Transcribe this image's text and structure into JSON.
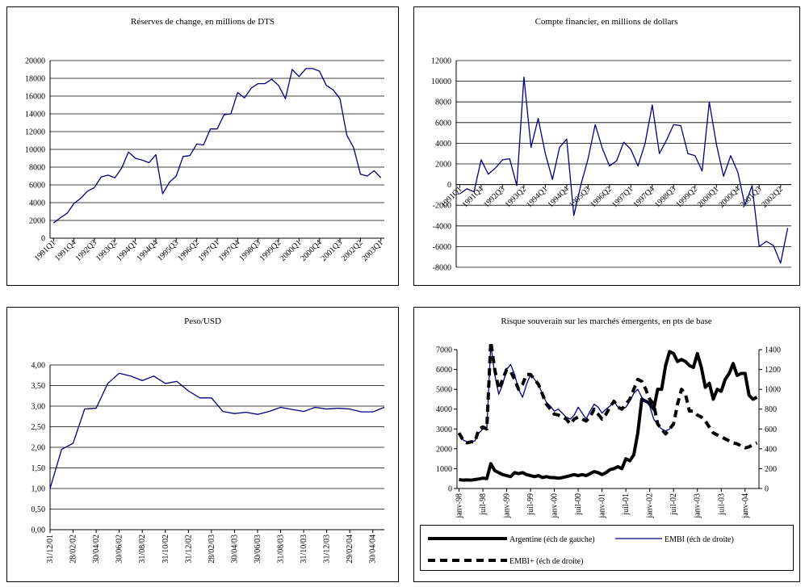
{
  "chart_data": [
    {
      "type": "line",
      "title": "Réserves de change, en millions de DTS",
      "categories": [
        "1991Q1",
        null,
        null,
        "1991Q4",
        null,
        null,
        "1992Q3",
        null,
        null,
        "1993Q2",
        null,
        null,
        "1994Q1",
        null,
        null,
        "1994Q4",
        null,
        null,
        "1995Q3",
        null,
        null,
        "1996Q2",
        null,
        null,
        "1997Q1",
        null,
        null,
        "1997Q4",
        null,
        null,
        "1998Q3",
        null,
        null,
        "1999Q2",
        null,
        null,
        "2000Q1",
        null,
        null,
        "2000Q4",
        null,
        null,
        "2001Q3",
        null,
        null,
        "2002Q2",
        null,
        null,
        "2003Q1"
      ],
      "values": [
        1700,
        2300,
        2800,
        3900,
        4500,
        5300,
        5700,
        6900,
        7100,
        6800,
        7900,
        9700,
        9000,
        8800,
        8500,
        9400,
        5000,
        6300,
        7000,
        9200,
        9300,
        10600,
        10500,
        12300,
        12300,
        13900,
        14000,
        16400,
        15800,
        16900,
        17400,
        17400,
        17900,
        17200,
        15700,
        19000,
        18200,
        19100,
        19100,
        18800,
        17200,
        16700,
        15700,
        11600,
        10200,
        7200,
        7000,
        7600,
        6800
      ],
      "color": "#000080",
      "ylim": [
        0,
        20000
      ],
      "yticks": [
        0,
        2000,
        4000,
        6000,
        8000,
        10000,
        12000,
        14000,
        16000,
        18000,
        20000
      ],
      "grid": true
    },
    {
      "type": "line",
      "title": "Compte financier, en millions de dollars",
      "categories": [
        "1991Q1",
        null,
        null,
        "1991Q4",
        null,
        null,
        "1992Q3",
        null,
        null,
        "1993Q2",
        null,
        null,
        "1994Q1",
        null,
        null,
        "1994Q4",
        null,
        null,
        "1995Q3",
        null,
        null,
        "1996Q2",
        null,
        null,
        "1997Q1",
        null,
        null,
        "1997Q4",
        null,
        null,
        "1998Q3",
        null,
        null,
        "1999Q2",
        null,
        null,
        "2000Q1",
        null,
        null,
        "2000Q4",
        null,
        null,
        "2001Q3",
        null,
        null,
        "2002Q2",
        null
      ],
      "values": [
        -900,
        -400,
        -700,
        2400,
        1000,
        1600,
        2400,
        2500,
        -100,
        10400,
        3600,
        6400,
        3000,
        500,
        3600,
        4400,
        -3000,
        0,
        2500,
        5800,
        3500,
        1800,
        2300,
        4100,
        3400,
        1800,
        4000,
        7700,
        3000,
        4300,
        5800,
        5700,
        3000,
        2800,
        1300,
        8000,
        3900,
        800,
        2800,
        1200,
        -2000,
        -100,
        -6000,
        -5500,
        -5900,
        -7600,
        -4200
      ],
      "color": "#000080",
      "ylim": [
        -8000,
        12000
      ],
      "yticks": [
        -8000,
        -6000,
        -4000,
        -2000,
        0,
        2000,
        4000,
        6000,
        8000,
        10000,
        12000
      ],
      "grid": true
    },
    {
      "type": "line",
      "title": "Peso/USD",
      "categories": [
        "31/12/01",
        null,
        "28/02/02",
        null,
        "30/04/02",
        null,
        "30/06/02",
        null,
        "31/08/02",
        null,
        "31/10/02",
        null,
        "31/12/02",
        null,
        "28/02/03",
        null,
        "30/04/03",
        null,
        "30/06/03",
        null,
        "31/08/03",
        null,
        "31/10/03",
        null,
        "31/12/03",
        null,
        "29/02/04",
        null,
        "30/04/04",
        null
      ],
      "values": [
        1.0,
        1.95,
        2.1,
        2.93,
        2.95,
        3.55,
        3.8,
        3.73,
        3.62,
        3.73,
        3.55,
        3.6,
        3.37,
        3.2,
        3.2,
        2.87,
        2.82,
        2.85,
        2.8,
        2.87,
        2.97,
        2.92,
        2.87,
        2.97,
        2.93,
        2.95,
        2.93,
        2.86,
        2.86,
        2.97
      ],
      "color": "#000080",
      "ylim": [
        0,
        4
      ],
      "yticks": [
        {
          "value": 0,
          "label": "0,00"
        },
        {
          "value": 0.5,
          "label": "0,50"
        },
        {
          "value": 1,
          "label": "1,00"
        },
        {
          "value": 1.5,
          "label": "1,50"
        },
        {
          "value": 2,
          "label": "2,00"
        },
        {
          "value": 2.5,
          "label": "2,50"
        },
        {
          "value": 3,
          "label": "3,00"
        },
        {
          "value": 3.5,
          "label": "3,50"
        },
        {
          "value": 4,
          "label": "4,00"
        }
      ],
      "grid": true
    },
    {
      "type": "line",
      "title": "Risque souverain sur les marchés émergents, en pts de base",
      "categories": [
        "janv-98",
        null,
        null,
        null,
        null,
        null,
        "juil-98",
        null,
        null,
        null,
        null,
        null,
        "janv-99",
        null,
        null,
        null,
        null,
        null,
        "juil-99",
        null,
        null,
        null,
        null,
        null,
        "janv-00",
        null,
        null,
        null,
        null,
        null,
        "juil-00",
        null,
        null,
        null,
        null,
        null,
        "janv-01",
        null,
        null,
        null,
        null,
        null,
        "juil-01",
        null,
        null,
        null,
        null,
        null,
        "janv-02",
        null,
        null,
        null,
        null,
        null,
        "juil-02",
        null,
        null,
        null,
        null,
        null,
        "janv-03",
        null,
        null,
        null,
        null,
        null,
        "juil-03",
        null,
        null,
        null,
        null,
        null,
        "janv-04",
        null,
        null,
        null
      ],
      "series": [
        {
          "name": "Argentine (éch de gauche)",
          "color": "#000000",
          "bold": true,
          "values": [
            450,
            420,
            430,
            420,
            450,
            480,
            520,
            500,
            1250,
            900,
            800,
            700,
            650,
            600,
            800,
            750,
            800,
            700,
            650,
            600,
            650,
            550,
            600,
            550,
            550,
            520,
            550,
            600,
            650,
            700,
            650,
            700,
            650,
            750,
            850,
            800,
            700,
            800,
            950,
            1000,
            1100,
            1000,
            1500,
            1400,
            1700,
            2800,
            4500,
            4400,
            4300,
            4000,
            5000,
            5000,
            6200,
            6900,
            6800,
            6400,
            6500,
            6400,
            6200,
            6100,
            6800,
            6100,
            5100,
            5300,
            4500,
            5000,
            4900,
            5500,
            5800,
            6300,
            5700,
            5800,
            5800,
            4700,
            4500,
            4600
          ]
        },
        {
          "name": "EMBI (éch de droite)",
          "color": "#000080",
          "axis": "y2",
          "values": [
            560,
            490,
            470,
            470,
            480,
            560,
            600,
            600,
            1450,
            1150,
            950,
            1050,
            1200,
            1250,
            1150,
            1000,
            920,
            1050,
            1150,
            1100,
            1050,
            950,
            870,
            830,
            780,
            800,
            760,
            720,
            700,
            740,
            820,
            760,
            700,
            780,
            850,
            820,
            760,
            800,
            830,
            880,
            820,
            800,
            820,
            880,
            960,
            1000,
            920,
            880,
            830,
            700,
            640,
            600,
            580,
            600,
            640,
            null,
            null,
            null,
            null,
            null,
            null,
            null,
            null,
            null,
            null,
            null,
            null,
            null,
            null,
            null,
            null,
            null,
            null,
            null,
            null,
            null
          ]
        },
        {
          "name": "EMBI+ (éch de droite)",
          "color": "#000000",
          "axis": "y2",
          "dashed": true,
          "bold": true,
          "values": [
            560,
            490,
            460,
            470,
            470,
            600,
            620,
            600,
            1480,
            1200,
            1000,
            1100,
            1200,
            1180,
            1100,
            1000,
            1050,
            1150,
            1150,
            1100,
            1050,
            950,
            850,
            800,
            750,
            740,
            720,
            700,
            650,
            700,
            720,
            700,
            680,
            720,
            800,
            750,
            700,
            750,
            820,
            880,
            820,
            800,
            850,
            900,
            1000,
            1100,
            1080,
            1000,
            900,
            850,
            650,
            600,
            550,
            600,
            650,
            850,
            1000,
            950,
            780,
            780,
            740,
            720,
            680,
            620,
            560,
            540,
            520,
            500,
            480,
            460,
            450,
            430,
            410,
            420,
            440,
            460
          ]
        }
      ],
      "ylim": [
        0,
        7000
      ],
      "yticks": [
        0,
        1000,
        2000,
        3000,
        4000,
        5000,
        6000,
        7000
      ],
      "y2lim": [
        0,
        1400
      ],
      "y2ticks": [
        0,
        200,
        400,
        600,
        800,
        1000,
        1200,
        1400
      ],
      "grid": false
    }
  ]
}
